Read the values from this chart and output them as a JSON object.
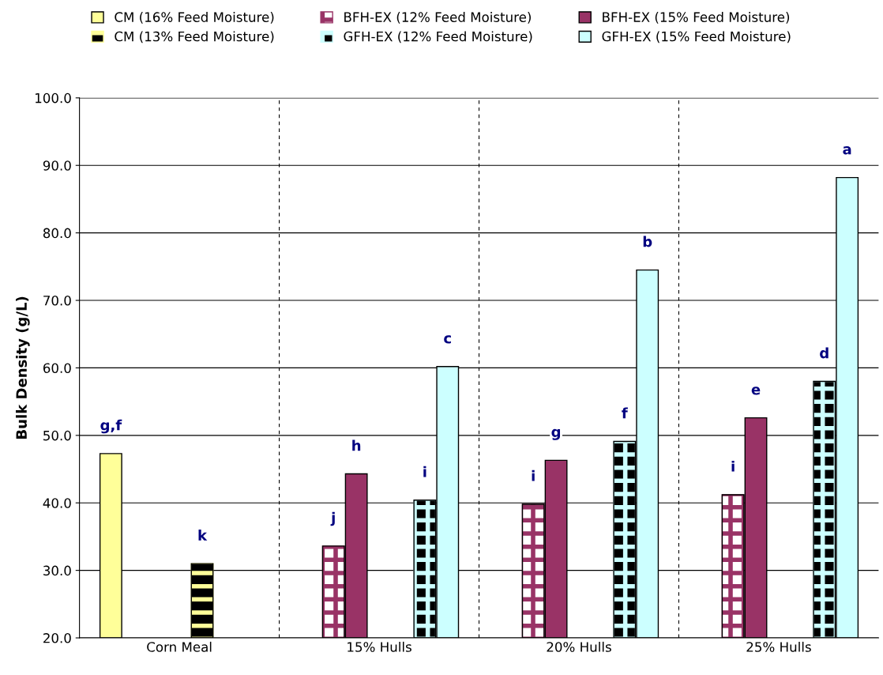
{
  "chart_data": {
    "type": "bar",
    "ylabel": "Bulk Density (g/L)",
    "categories": [
      "Corn Meal",
      "15% Hulls",
      "20% Hulls",
      "25% Hulls"
    ],
    "series": [
      {
        "name": "CM (16% Feed Moisture)",
        "color": "#ffff99",
        "values": [
          47.3,
          null,
          null,
          null
        ],
        "value_labels": [
          "g,f",
          null,
          null,
          null
        ]
      },
      {
        "name": "BFH-EX (12% Feed Moisture)",
        "color": "#993366",
        "values": [
          null,
          33.6,
          39.8,
          41.2
        ],
        "value_labels": [
          null,
          "j",
          "i",
          "i"
        ]
      },
      {
        "name": "BFH-EX (15% Feed Moisture)",
        "color": "#993366",
        "values": [
          null,
          44.3,
          46.3,
          52.6
        ],
        "value_labels": [
          null,
          "h",
          "g",
          "e"
        ]
      },
      {
        "name": "CM (13% Feed Moisture)",
        "color": "#ffff99",
        "values": [
          31.0,
          null,
          null,
          null
        ],
        "value_labels": [
          "k",
          null,
          null,
          null
        ]
      },
      {
        "name": "GFH-EX (12% Feed Moisture)",
        "color": "#ccffff",
        "values": [
          null,
          40.4,
          49.1,
          58.0
        ],
        "value_labels": [
          null,
          "i",
          "f",
          "d"
        ]
      },
      {
        "name": "GFH-EX (15% Feed Moisture)",
        "color": "#ccffff",
        "values": [
          null,
          60.2,
          74.5,
          88.2
        ],
        "value_labels": [
          null,
          "c",
          "b",
          "a"
        ]
      }
    ],
    "ylim": [
      20,
      100
    ],
    "yticks": [
      {
        "value": 20,
        "label": "20.0"
      },
      {
        "value": 30,
        "label": "30.0"
      },
      {
        "value": 40,
        "label": "40.0"
      },
      {
        "value": 50,
        "label": "50.0"
      },
      {
        "value": 60,
        "label": "60.0"
      },
      {
        "value": 70,
        "label": "70.0"
      },
      {
        "value": 80,
        "label": "80.0"
      },
      {
        "value": 90,
        "label": "90.0"
      },
      {
        "value": 100,
        "label": "100.0"
      }
    ],
    "grid": true,
    "legend": "top"
  }
}
